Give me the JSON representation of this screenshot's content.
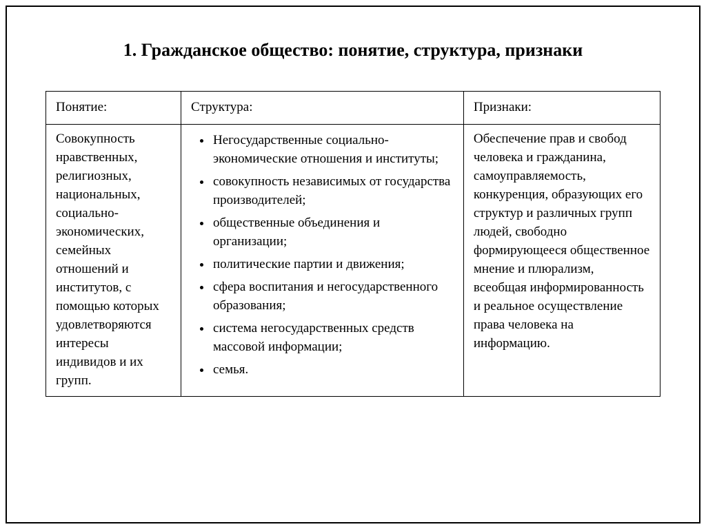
{
  "title": "1. Гражданское общество: понятие, структура, признаки",
  "table": {
    "headers": {
      "concept": "Понятие:",
      "structure": "Структура:",
      "signs": "Признаки:"
    },
    "body": {
      "concept": "Совокупность нравственных, религиозных, национальных, социально-экономических, семейных отношений и институтов, с помощью которых удовлетворяются интересы индивидов и их групп.",
      "structure_items": [
        "Негосударственные социально-экономические отношения и институты;",
        "совокупность независимых от государства производителей;",
        "общественные объединения и организации;",
        "политические партии и движения;",
        "сфера воспитания и негосударственного образования;",
        "система негосударственных средств массовой информации;",
        "семья."
      ],
      "signs": "Обеспечение прав и свобод человека и гражданина, самоуправляемость, конкуренция, образующих его структур и различных групп людей, свободно формирующееся общественное мнение и плюрализм, всеобщая информированность и реальное осуществление права человека на информацию."
    }
  },
  "style": {
    "border_color": "#000000",
    "background_color": "#ffffff",
    "text_color": "#000000",
    "title_fontsize": 26,
    "body_fontsize": 19,
    "font_family": "Times New Roman"
  }
}
